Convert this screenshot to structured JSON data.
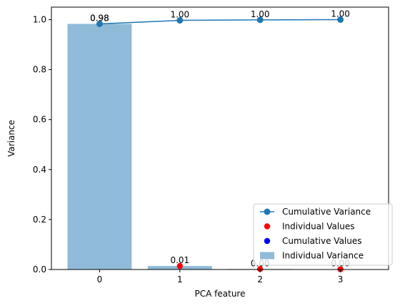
{
  "chart_data": {
    "type": "bar",
    "xlabel": "PCA feature",
    "ylabel": "Variance",
    "categories": [
      "0",
      "1",
      "2",
      "3"
    ],
    "x": [
      0,
      1,
      2,
      3
    ],
    "xlim": [
      -0.6,
      3.6
    ],
    "ylim": [
      0,
      1.05
    ],
    "yticks": [
      0.0,
      0.2,
      0.4,
      0.6,
      0.8,
      1.0
    ],
    "ytick_labels": [
      "0.0",
      "0.2",
      "0.4",
      "0.6",
      "0.8",
      "1.0"
    ],
    "grid": false,
    "legend_position": "lower-right",
    "series": [
      {
        "name": "Cumulative Variance",
        "kind": "line",
        "color": "#1f77b4",
        "values": [
          0.983,
          0.997,
          0.999,
          1.0
        ]
      },
      {
        "name": "Individual Values",
        "kind": "scatter",
        "color": "#ff0000",
        "values": [
          0.983,
          0.014,
          0.002,
          0.001
        ]
      },
      {
        "name": "Cumulative Values",
        "kind": "scatter",
        "color": "#0000ff",
        "values": [
          0.983,
          0.997,
          0.999,
          1.0
        ]
      },
      {
        "name": "Individual Variance",
        "kind": "bar",
        "color": "#8fbbd9",
        "values": [
          0.983,
          0.014,
          0.002,
          0.001
        ]
      }
    ],
    "cumulative_labels": [
      "0.98",
      "1.00",
      "1.00",
      "1.00"
    ],
    "individual_labels": [
      "0.98",
      "0.01",
      "0.00",
      "0.00"
    ],
    "legend_order": [
      "Cumulative Variance",
      "Individual Values",
      "Cumulative Values",
      "Individual Variance"
    ]
  }
}
